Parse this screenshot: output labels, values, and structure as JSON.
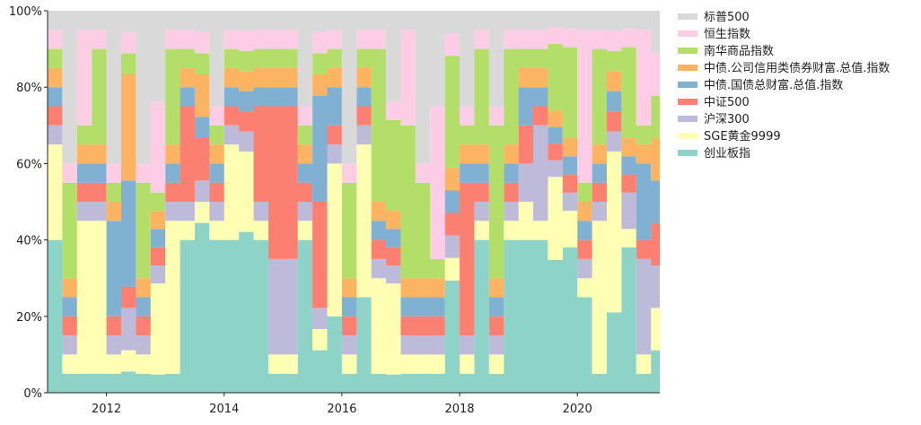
{
  "chart_data": {
    "type": "area",
    "stacking": "percent",
    "title": "",
    "xlabel": "",
    "ylabel": "",
    "xlim": [
      2011.0,
      2021.4
    ],
    "ylim": [
      0,
      100
    ],
    "x_ticks": [
      2012,
      2014,
      2016,
      2018,
      2020
    ],
    "y_ticks": [
      0,
      20,
      40,
      60,
      80,
      100
    ],
    "y_tick_labels": [
      "0%",
      "20%",
      "40%",
      "60%",
      "80%",
      "100%"
    ],
    "legend_position": "right",
    "legend_order": [
      "标普500",
      "恒生指数",
      "南华商品指数",
      "中债.公司信用类债券财富.总值.指数",
      "中债.国债总财富.总值.指数",
      "中证500",
      "沪深300",
      "SGE黄金9999",
      "创业板指"
    ],
    "x": [
      2011.0,
      2011.25,
      2011.5,
      2011.75,
      2012.0,
      2012.25,
      2012.5,
      2012.75,
      2013.0,
      2013.25,
      2013.5,
      2013.75,
      2014.0,
      2014.25,
      2014.5,
      2014.75,
      2015.0,
      2015.25,
      2015.5,
      2015.75,
      2016.0,
      2016.25,
      2016.5,
      2016.75,
      2017.0,
      2017.25,
      2017.5,
      2017.75,
      2018.0,
      2018.25,
      2018.5,
      2018.75,
      2019.0,
      2019.25,
      2019.5,
      2019.75,
      2020.0,
      2020.25,
      2020.5,
      2020.75,
      2021.0,
      2021.25
    ],
    "series": [
      {
        "name": "创业板指",
        "color": "#8dd3c7",
        "values": [
          40,
          5,
          5,
          5,
          5,
          5,
          5,
          5,
          5,
          40,
          40,
          40,
          40,
          40,
          40,
          5,
          5,
          40,
          10,
          20,
          5,
          25,
          5,
          5,
          5,
          5,
          5,
          25,
          5,
          40,
          5,
          40,
          40,
          40,
          40,
          40,
          25,
          5,
          20,
          40,
          5,
          5
        ]
      },
      {
        "name": "SGE黄金9999",
        "color": "#ffffb3",
        "values": [
          25,
          5,
          40,
          40,
          5,
          5,
          5,
          25,
          40,
          5,
          5,
          5,
          25,
          20,
          5,
          5,
          5,
          5,
          5,
          40,
          5,
          40,
          25,
          25,
          5,
          5,
          5,
          5,
          5,
          5,
          5,
          5,
          10,
          5,
          25,
          10,
          5,
          40,
          40,
          5,
          5,
          5
        ]
      },
      {
        "name": "沪深300",
        "color": "#bebada",
        "values": [
          5,
          5,
          5,
          5,
          5,
          10,
          5,
          5,
          5,
          5,
          5,
          5,
          5,
          5,
          5,
          25,
          25,
          5,
          5,
          5,
          5,
          5,
          5,
          5,
          5,
          5,
          5,
          5,
          5,
          5,
          5,
          5,
          10,
          25,
          5,
          5,
          5,
          5,
          5,
          10,
          25,
          5
        ]
      },
      {
        "name": "中证500",
        "color": "#fb8072",
        "values": [
          5,
          5,
          5,
          5,
          5,
          5,
          5,
          5,
          5,
          25,
          10,
          5,
          5,
          5,
          25,
          40,
          40,
          5,
          25,
          5,
          5,
          5,
          5,
          5,
          5,
          5,
          5,
          5,
          40,
          5,
          5,
          5,
          10,
          5,
          5,
          5,
          5,
          5,
          5,
          5,
          5,
          5
        ]
      },
      {
        "name": "中债.国债总财富.总值.指数",
        "color": "#80b1d3",
        "values": [
          5,
          5,
          5,
          5,
          25,
          25,
          5,
          5,
          5,
          5,
          5,
          5,
          5,
          5,
          5,
          5,
          5,
          5,
          25,
          10,
          5,
          5,
          5,
          5,
          5,
          5,
          5,
          5,
          5,
          5,
          5,
          5,
          10,
          5,
          5,
          5,
          5,
          5,
          5,
          5,
          20,
          5
        ]
      },
      {
        "name": "中债.公司信用类债券财富.总值.指数",
        "color": "#fdb462",
        "values": [
          5,
          5,
          5,
          5,
          5,
          25,
          5,
          5,
          5,
          5,
          10,
          5,
          5,
          5,
          5,
          5,
          5,
          5,
          5,
          5,
          5,
          5,
          5,
          5,
          5,
          5,
          5,
          5,
          5,
          5,
          5,
          5,
          5,
          5,
          5,
          5,
          5,
          5,
          5,
          5,
          5,
          5
        ]
      },
      {
        "name": "南华商品指数",
        "color": "#b3de69",
        "values": [
          5,
          25,
          5,
          25,
          5,
          5,
          25,
          5,
          25,
          5,
          5,
          5,
          5,
          5,
          5,
          5,
          5,
          5,
          5,
          5,
          25,
          5,
          40,
          25,
          40,
          25,
          5,
          25,
          5,
          25,
          40,
          25,
          5,
          5,
          20,
          25,
          5,
          25,
          5,
          25,
          5,
          5
        ]
      },
      {
        "name": "恒生指数",
        "color": "#fccde5",
        "values": [
          5,
          5,
          25,
          5,
          5,
          5,
          5,
          25,
          5,
          5,
          5,
          5,
          5,
          5,
          5,
          5,
          5,
          5,
          5,
          5,
          5,
          5,
          5,
          5,
          25,
          5,
          40,
          5,
          5,
          5,
          5,
          5,
          5,
          5,
          5,
          5,
          40,
          5,
          5,
          5,
          25,
          5
        ]
      },
      {
        "name": "标普500",
        "color": "#d9d9d9",
        "values": [
          5,
          40,
          5,
          5,
          40,
          5,
          40,
          25,
          5,
          5,
          5,
          25,
          5,
          5,
          5,
          5,
          5,
          25,
          5,
          5,
          40,
          5,
          5,
          25,
          5,
          40,
          25,
          5,
          25,
          5,
          25,
          5,
          5,
          5,
          5,
          5,
          5,
          5,
          5,
          5,
          5,
          5
        ]
      }
    ]
  }
}
